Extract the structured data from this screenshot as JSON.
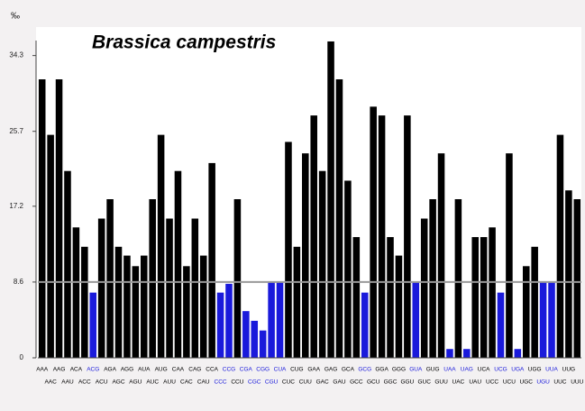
{
  "chart_data": {
    "type": "bar",
    "title": "Brassica campestris",
    "y_unit": "‰",
    "categories": [
      "AAA",
      "AAC",
      "AAG",
      "AAU",
      "ACA",
      "ACC",
      "ACG",
      "ACU",
      "AGA",
      "AGC",
      "AGG",
      "AGU",
      "AUA",
      "AUC",
      "AUG",
      "AUU",
      "CAA",
      "CAC",
      "CAG",
      "CAU",
      "CCA",
      "CCC",
      "CCG",
      "CCU",
      "CGA",
      "CGC",
      "CGG",
      "CGU",
      "CUA",
      "CUC",
      "CUG",
      "CUU",
      "GAA",
      "GAC",
      "GAG",
      "GAU",
      "GCA",
      "GCC",
      "GCG",
      "GCU",
      "GGA",
      "GGC",
      "GGG",
      "GGU",
      "GUA",
      "GUC",
      "GUG",
      "GUU",
      "UAA",
      "UAC",
      "UAG",
      "UAU",
      "UCA",
      "UCC",
      "UCG",
      "UCU",
      "UGA",
      "UGC",
      "UGG",
      "UGU",
      "UUA",
      "UUC",
      "UUG",
      "UUU"
    ],
    "values": [
      31.6,
      25.3,
      31.6,
      21.2,
      14.8,
      12.6,
      7.4,
      15.8,
      18.0,
      12.6,
      11.6,
      10.4,
      11.6,
      18.0,
      25.3,
      15.8,
      21.2,
      10.4,
      15.8,
      11.6,
      22.1,
      7.4,
      8.4,
      18.0,
      5.3,
      4.2,
      3.1,
      8.6,
      8.6,
      24.5,
      12.6,
      23.2,
      27.5,
      21.2,
      35.9,
      31.6,
      20.1,
      13.7,
      7.4,
      28.5,
      27.5,
      13.7,
      11.6,
      27.5,
      8.6,
      15.8,
      18.0,
      23.2,
      1.0,
      18.0,
      1.0,
      13.7,
      13.7,
      14.8,
      7.4,
      23.2,
      1.0,
      10.4,
      12.6,
      8.6,
      8.6,
      25.3,
      19.0,
      18.0
    ],
    "colors": [
      "#000000",
      "#000000",
      "#000000",
      "#000000",
      "#000000",
      "#000000",
      "#1a1adb",
      "#000000",
      "#000000",
      "#000000",
      "#000000",
      "#000000",
      "#000000",
      "#000000",
      "#000000",
      "#000000",
      "#000000",
      "#000000",
      "#000000",
      "#000000",
      "#000000",
      "#1a1adb",
      "#1a1adb",
      "#000000",
      "#1a1adb",
      "#1a1adb",
      "#1a1adb",
      "#1a1adb",
      "#1a1adb",
      "#000000",
      "#000000",
      "#000000",
      "#000000",
      "#000000",
      "#000000",
      "#000000",
      "#000000",
      "#000000",
      "#1a1adb",
      "#000000",
      "#000000",
      "#000000",
      "#000000",
      "#000000",
      "#1a1adb",
      "#000000",
      "#000000",
      "#000000",
      "#1a1adb",
      "#000000",
      "#1a1adb",
      "#000000",
      "#000000",
      "#000000",
      "#1a1adb",
      "#000000",
      "#1a1adb",
      "#000000",
      "#000000",
      "#1a1adb",
      "#1a1adb",
      "#000000",
      "#000000",
      "#000000"
    ],
    "ylim": [
      0,
      36
    ],
    "yticks": [
      0,
      8.6,
      17.2,
      25.7,
      34.3
    ],
    "reference_line": 8.6,
    "reference_color": "#999999"
  }
}
